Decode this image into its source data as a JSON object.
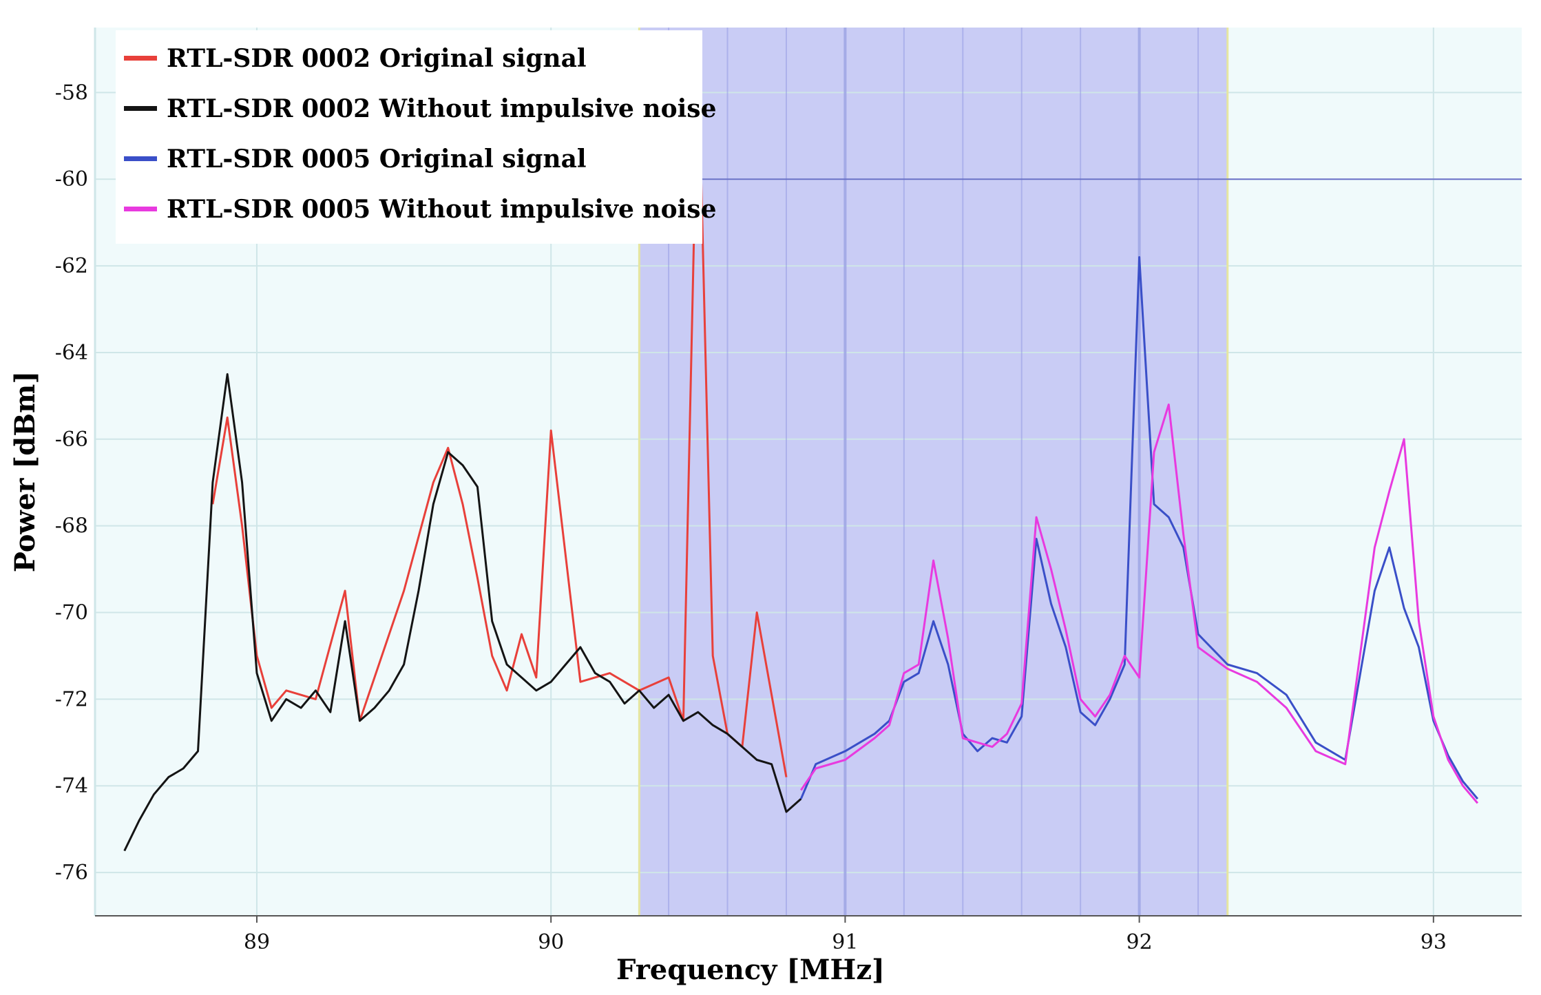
{
  "chart_data": {
    "type": "line",
    "xlabel": "Frequency [MHz]",
    "ylabel": "Power [dBm]",
    "xlim": [
      88.45,
      93.3
    ],
    "ylim": [
      -77,
      -56.5
    ],
    "x_ticks": [
      89,
      90,
      91,
      92,
      93
    ],
    "y_ticks": [
      -58,
      -60,
      -62,
      -64,
      -66,
      -68,
      -70,
      -72,
      -74,
      -76
    ],
    "grid": true,
    "legend_position": "top-left",
    "highlight_band": {
      "x": [
        90.3,
        92.3
      ]
    },
    "reference_line": {
      "y": -60
    },
    "colors": {
      "plot_bg": "#f0fafb",
      "band_fill": "#c9ccf5",
      "grid": "#cfe6e8",
      "band_grid": "#9aa0e6",
      "band_edge": "#e6e6a0"
    },
    "series": [
      {
        "name": "RTL-SDR 0002 Original signal",
        "color": "#e8403a",
        "x": [
          88.85,
          88.9,
          88.95,
          89.0,
          89.05,
          89.1,
          89.2,
          89.3,
          89.35,
          89.4,
          89.5,
          89.6,
          89.65,
          89.7,
          89.75,
          89.8,
          89.85,
          89.9,
          89.95,
          90.0,
          90.1,
          90.2,
          90.3,
          90.4,
          90.45,
          90.5,
          90.55,
          90.6,
          90.65,
          90.7,
          90.8
        ],
        "y": [
          -67.5,
          -65.5,
          -68,
          -71,
          -72.2,
          -71.8,
          -72,
          -69.5,
          -72.5,
          -71.5,
          -69.5,
          -67,
          -66.2,
          -67.5,
          -69.2,
          -71,
          -71.8,
          -70.5,
          -71.5,
          -65.8,
          -71.6,
          -71.4,
          -71.8,
          -71.5,
          -72.5,
          -57,
          -71,
          -72.8,
          -73.1,
          -70,
          -73.8
        ]
      },
      {
        "name": "RTL-SDR 0002 Without impulsive noise",
        "color": "#141414",
        "x": [
          88.55,
          88.6,
          88.65,
          88.7,
          88.75,
          88.8,
          88.85,
          88.9,
          88.95,
          89.0,
          89.05,
          89.1,
          89.15,
          89.2,
          89.25,
          89.3,
          89.35,
          89.4,
          89.45,
          89.5,
          89.55,
          89.6,
          89.65,
          89.7,
          89.75,
          89.8,
          89.85,
          89.9,
          89.95,
          90.0,
          90.05,
          90.1,
          90.15,
          90.2,
          90.25,
          90.3,
          90.35,
          90.4,
          90.45,
          90.5,
          90.55,
          90.6,
          90.65,
          90.7,
          90.75,
          90.8,
          90.85
        ],
        "y": [
          -75.5,
          -74.8,
          -74.2,
          -73.8,
          -73.6,
          -73.2,
          -67,
          -64.5,
          -67,
          -71.4,
          -72.5,
          -72,
          -72.2,
          -71.8,
          -72.3,
          -70.2,
          -72.5,
          -72.2,
          -71.8,
          -71.2,
          -69.5,
          -67.5,
          -66.3,
          -66.6,
          -67.1,
          -70.2,
          -71.2,
          -71.5,
          -71.8,
          -71.6,
          -71.2,
          -70.8,
          -71.4,
          -71.6,
          -72.1,
          -71.8,
          -72.2,
          -71.9,
          -72.5,
          -72.3,
          -72.6,
          -72.8,
          -73.1,
          -73.4,
          -73.5,
          -74.6,
          -74.3
        ]
      },
      {
        "name": "RTL-SDR 0005 Original signal",
        "color": "#3a4fc8",
        "x": [
          90.85,
          90.9,
          91.0,
          91.1,
          91.15,
          91.2,
          91.25,
          91.3,
          91.35,
          91.4,
          91.45,
          91.5,
          91.55,
          91.6,
          91.65,
          91.7,
          91.75,
          91.8,
          91.85,
          91.9,
          91.95,
          92.0,
          92.05,
          92.1,
          92.15,
          92.2,
          92.3,
          92.4,
          92.5,
          92.6,
          92.7,
          92.8,
          92.85,
          92.9,
          92.95,
          93.0,
          93.05,
          93.1,
          93.15
        ],
        "y": [
          -74.3,
          -73.5,
          -73.2,
          -72.8,
          -72.5,
          -71.6,
          -71.4,
          -70.2,
          -71.2,
          -72.8,
          -73.2,
          -72.9,
          -73.0,
          -72.4,
          -68.3,
          -69.8,
          -70.8,
          -72.3,
          -72.6,
          -72.0,
          -71.2,
          -61.8,
          -67.5,
          -67.8,
          -68.5,
          -70.5,
          -71.2,
          -71.4,
          -71.9,
          -73.0,
          -73.4,
          -69.5,
          -68.5,
          -69.9,
          -70.8,
          -72.5,
          -73.3,
          -73.9,
          -74.3
        ]
      },
      {
        "name": "RTL-SDR 0005 Without impulsive noise",
        "color": "#e83adf",
        "x": [
          90.85,
          90.9,
          91.0,
          91.1,
          91.15,
          91.2,
          91.25,
          91.3,
          91.35,
          91.4,
          91.45,
          91.5,
          91.55,
          91.6,
          91.65,
          91.7,
          91.75,
          91.8,
          91.85,
          91.9,
          91.95,
          92.0,
          92.05,
          92.1,
          92.15,
          92.2,
          92.3,
          92.4,
          92.5,
          92.6,
          92.7,
          92.8,
          92.85,
          92.9,
          92.95,
          93.0,
          93.05,
          93.1,
          93.15
        ],
        "y": [
          -74.1,
          -73.6,
          -73.4,
          -72.9,
          -72.6,
          -71.4,
          -71.2,
          -68.8,
          -70.6,
          -72.9,
          -73.0,
          -73.1,
          -72.8,
          -72.1,
          -67.8,
          -69.0,
          -70.4,
          -72.0,
          -72.4,
          -71.9,
          -71.0,
          -71.5,
          -66.3,
          -65.2,
          -68.2,
          -70.8,
          -71.3,
          -71.6,
          -72.2,
          -73.2,
          -73.5,
          -68.5,
          -67.2,
          -66.0,
          -70.2,
          -72.4,
          -73.4,
          -74.0,
          -74.4
        ]
      }
    ]
  }
}
